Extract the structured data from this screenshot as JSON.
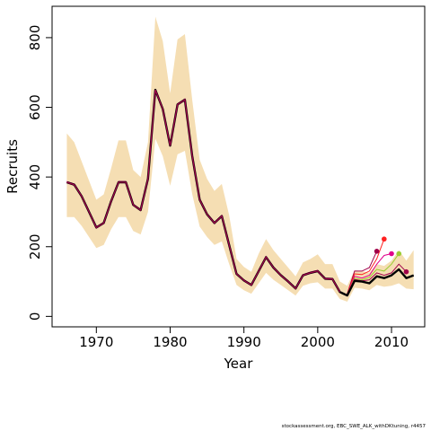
{
  "footer_text": "stockassessment.org, EBC_SWE_ALK_withDKtuning, r4457",
  "chart_data": {
    "type": "line",
    "title": "",
    "xlabel": "Year",
    "ylabel": "Recruits",
    "xlim": [
      1964,
      2014.5
    ],
    "ylim": [
      -30,
      890
    ],
    "x_ticks": [
      1970,
      1980,
      1990,
      2000,
      2010
    ],
    "y_ticks": [
      0,
      200,
      400,
      600,
      800
    ],
    "grid": false,
    "legend": "none",
    "colors": {
      "band": "#f5deb3",
      "main": "#000000",
      "retro_lines": [
        "#a0004a",
        "#cc0066",
        "#ff2020",
        "#e0008a",
        "#ff69b4",
        "#9acd32",
        "#c8a000"
      ]
    },
    "years": [
      1966,
      1967,
      1968,
      1969,
      1970,
      1971,
      1972,
      1973,
      1974,
      1975,
      1976,
      1977,
      1978,
      1979,
      1980,
      1981,
      1982,
      1983,
      1984,
      1985,
      1986,
      1987,
      1988,
      1989,
      1990,
      1991,
      1992,
      1993,
      1994,
      1995,
      1996,
      1997,
      1998,
      1999,
      2000,
      2001,
      2002,
      2003,
      2004,
      2005,
      2006,
      2007,
      2008,
      2009,
      2010,
      2011,
      2012,
      2013
    ],
    "estimate": [
      385,
      378,
      345,
      300,
      255,
      268,
      330,
      385,
      385,
      320,
      305,
      395,
      650,
      595,
      490,
      608,
      622,
      460,
      335,
      293,
      268,
      288,
      205,
      122,
      103,
      90,
      130,
      170,
      140,
      118,
      100,
      80,
      118,
      125,
      130,
      108,
      107,
      70,
      60,
      102,
      100,
      95,
      115,
      110,
      118,
      135,
      110,
      118
    ],
    "upper": [
      525,
      500,
      445,
      390,
      335,
      350,
      425,
      505,
      505,
      420,
      400,
      500,
      860,
      790,
      640,
      795,
      810,
      620,
      450,
      395,
      360,
      380,
      290,
      165,
      142,
      128,
      180,
      222,
      190,
      165,
      140,
      115,
      155,
      165,
      178,
      150,
      150,
      100,
      88,
      132,
      130,
      125,
      150,
      145,
      160,
      190,
      160,
      190
    ],
    "lower": [
      285,
      285,
      260,
      228,
      196,
      205,
      250,
      285,
      285,
      245,
      235,
      300,
      510,
      460,
      375,
      465,
      475,
      350,
      258,
      228,
      205,
      215,
      150,
      90,
      75,
      65,
      95,
      125,
      105,
      90,
      75,
      60,
      88,
      95,
      98,
      80,
      80,
      50,
      42,
      82,
      80,
      75,
      90,
      85,
      88,
      95,
      80,
      78
    ],
    "retro_series": [
      {
        "x": [
          2004,
          2005,
          2006,
          2007,
          2008
        ],
        "values": [
          65,
          130,
          130,
          140,
          187
        ],
        "color": "#a0004a"
      },
      {
        "x": [
          2004,
          2005,
          2006,
          2007,
          2008,
          2009
        ],
        "values": [
          64,
          122,
          120,
          130,
          165,
          222
        ],
        "color": "#ff2020"
      },
      {
        "x": [
          2004,
          2005,
          2006,
          2007,
          2008,
          2009,
          2010
        ],
        "values": [
          62,
          115,
          110,
          118,
          150,
          175,
          180
        ],
        "color": "#e0008a"
      },
      {
        "x": [
          2004,
          2005,
          2006,
          2007,
          2008,
          2009,
          2010,
          2011
        ],
        "values": [
          62,
          110,
          105,
          112,
          135,
          130,
          150,
          180
        ],
        "color": "#9acd32"
      },
      {
        "x": [
          2004,
          2005,
          2006,
          2007,
          2008,
          2009,
          2010,
          2011,
          2012
        ],
        "values": [
          61,
          106,
          102,
          105,
          125,
          118,
          125,
          150,
          128
        ],
        "color": "#a0004a"
      }
    ],
    "retro_endpoints": [
      {
        "x": 2008,
        "y": 187,
        "color": "#a0004a"
      },
      {
        "x": 2009,
        "y": 222,
        "color": "#ff2020"
      },
      {
        "x": 2010,
        "y": 180,
        "color": "#e0008a"
      },
      {
        "x": 2011,
        "y": 180,
        "color": "#9acd32"
      },
      {
        "x": 2012,
        "y": 128,
        "color": "#a0004a"
      }
    ]
  }
}
